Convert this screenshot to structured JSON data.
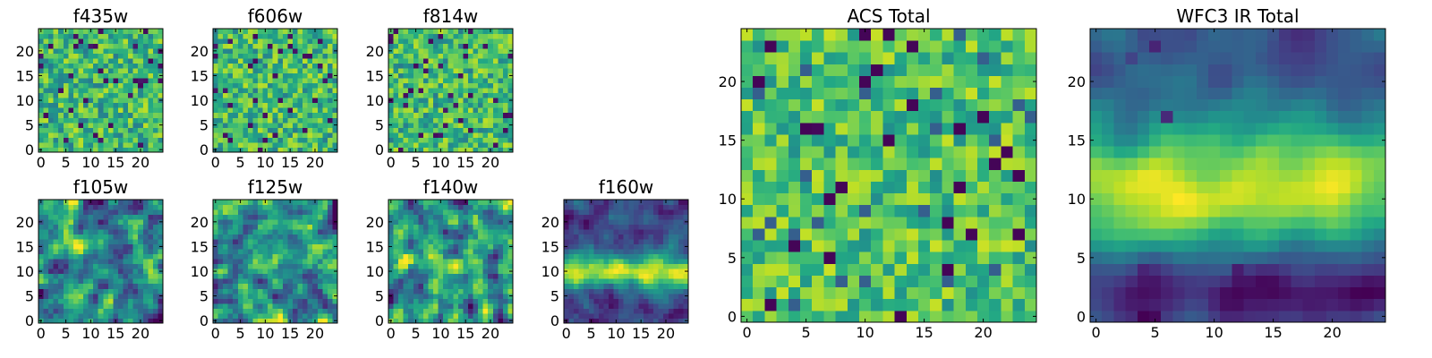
{
  "chart_data": [
    {
      "type": "heatmap",
      "title": "f435w",
      "xlabel": "",
      "ylabel": "",
      "xlim": [
        0,
        25
      ],
      "ylim": [
        0,
        25
      ],
      "grid": false,
      "colormap": "viridis",
      "xticks": [
        "0",
        "5",
        "10",
        "15",
        "20"
      ],
      "yticks": [
        "0",
        "5",
        "10",
        "15",
        "20"
      ],
      "rows": 25,
      "cols": 25,
      "value_range": [
        0,
        1
      ],
      "pattern": "noise",
      "seed": 11
    },
    {
      "type": "heatmap",
      "title": "f606w",
      "xlabel": "",
      "ylabel": "",
      "xlim": [
        0,
        25
      ],
      "ylim": [
        0,
        25
      ],
      "grid": false,
      "colormap": "viridis",
      "xticks": [
        "0",
        "5",
        "10",
        "15",
        "20"
      ],
      "yticks": [
        "0",
        "5",
        "10",
        "15",
        "20"
      ],
      "rows": 25,
      "cols": 25,
      "value_range": [
        0,
        1
      ],
      "pattern": "noise",
      "seed": 23
    },
    {
      "type": "heatmap",
      "title": "f814w",
      "xlabel": "",
      "ylabel": "",
      "xlim": [
        0,
        25
      ],
      "ylim": [
        0,
        25
      ],
      "grid": false,
      "colormap": "viridis",
      "xticks": [
        "0",
        "5",
        "10",
        "15",
        "20"
      ],
      "yticks": [
        "0",
        "5",
        "10",
        "15",
        "20"
      ],
      "rows": 25,
      "cols": 25,
      "value_range": [
        0,
        1
      ],
      "pattern": "noise",
      "seed": 37
    },
    {
      "type": "heatmap",
      "title": "f105w",
      "xlabel": "",
      "ylabel": "",
      "xlim": [
        0,
        25
      ],
      "ylim": [
        0,
        25
      ],
      "grid": false,
      "colormap": "viridis",
      "xticks": [
        "0",
        "5",
        "10",
        "15",
        "20"
      ],
      "yticks": [
        "0",
        "5",
        "10",
        "15",
        "20"
      ],
      "rows": 25,
      "cols": 25,
      "value_range": [
        0,
        1
      ],
      "pattern": "smooth",
      "seed": 41
    },
    {
      "type": "heatmap",
      "title": "f125w",
      "xlabel": "",
      "ylabel": "",
      "xlim": [
        0,
        25
      ],
      "ylim": [
        0,
        25
      ],
      "grid": false,
      "colormap": "viridis",
      "xticks": [
        "0",
        "5",
        "10",
        "15",
        "20"
      ],
      "yticks": [
        "0",
        "5",
        "10",
        "15",
        "20"
      ],
      "rows": 25,
      "cols": 25,
      "value_range": [
        0,
        1
      ],
      "pattern": "smooth",
      "seed": 53
    },
    {
      "type": "heatmap",
      "title": "f140w",
      "xlabel": "",
      "ylabel": "",
      "xlim": [
        0,
        25
      ],
      "ylim": [
        0,
        25
      ],
      "grid": false,
      "colormap": "viridis",
      "xticks": [
        "0",
        "5",
        "10",
        "15",
        "20"
      ],
      "yticks": [
        "0",
        "5",
        "10",
        "15",
        "20"
      ],
      "rows": 25,
      "cols": 25,
      "value_range": [
        0,
        1
      ],
      "pattern": "smooth",
      "seed": 67
    },
    {
      "type": "heatmap",
      "title": "f160w",
      "xlabel": "",
      "ylabel": "",
      "xlim": [
        0,
        25
      ],
      "ylim": [
        0,
        25
      ],
      "grid": false,
      "colormap": "viridis",
      "xticks": [
        "0",
        "5",
        "10",
        "15",
        "20"
      ],
      "yticks": [
        "0",
        "5",
        "10",
        "15",
        "20"
      ],
      "rows": 25,
      "cols": 25,
      "value_range": [
        0,
        1
      ],
      "pattern": "band",
      "seed": 79
    },
    {
      "type": "heatmap",
      "title": "ACS Total",
      "xlabel": "",
      "ylabel": "",
      "xlim": [
        0,
        25
      ],
      "ylim": [
        0,
        25
      ],
      "grid": false,
      "colormap": "viridis",
      "xticks": [
        "0",
        "5",
        "10",
        "15",
        "20"
      ],
      "yticks": [
        "0",
        "5",
        "10",
        "15",
        "20"
      ],
      "rows": 25,
      "cols": 25,
      "value_range": [
        0,
        1
      ],
      "pattern": "acs",
      "seed": 97
    },
    {
      "type": "heatmap",
      "title": "WFC3 IR Total",
      "xlabel": "",
      "ylabel": "",
      "xlim": [
        0,
        25
      ],
      "ylim": [
        0,
        25
      ],
      "grid": false,
      "colormap": "viridis",
      "xticks": [
        "0",
        "5",
        "10",
        "15",
        "20"
      ],
      "yticks": [
        "0",
        "5",
        "10",
        "15",
        "20"
      ],
      "rows": 25,
      "cols": 25,
      "value_range": [
        0,
        1
      ],
      "pattern": "wfc3",
      "seed": 113
    }
  ]
}
